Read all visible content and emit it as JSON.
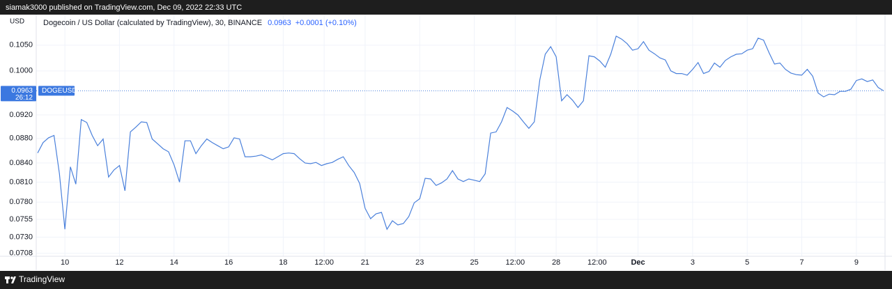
{
  "header": {
    "published": "siamak3000 published on TradingView.com, Dec 09, 2022 22:33 UTC"
  },
  "footer": {
    "brand": "TradingView"
  },
  "chart_data": {
    "type": "line",
    "title": "Dogecoin / US Dollar (calculated by TradingView), 30, BINANCE",
    "last_value": 0.0963,
    "change": "+0.0001 (+0.10%)",
    "countdown": "26:12",
    "symbol": "DOGEUSD",
    "y_unit": "USD",
    "color": "#4a80db",
    "log_scale": true,
    "grid": true,
    "x": [
      9.0,
      9.2,
      9.4,
      9.6,
      9.8,
      10.0,
      10.2,
      10.4,
      10.6,
      10.8,
      11.0,
      11.2,
      11.4,
      11.6,
      11.8,
      12.0,
      12.2,
      12.4,
      12.6,
      12.8,
      13.0,
      13.2,
      13.4,
      13.6,
      13.8,
      14.0,
      14.2,
      14.4,
      14.6,
      14.8,
      15.0,
      15.2,
      15.4,
      15.6,
      15.8,
      16.0,
      16.2,
      16.4,
      16.6,
      16.8,
      17.0,
      17.2,
      17.4,
      17.6,
      17.8,
      18.0,
      18.2,
      18.4,
      18.6,
      18.8,
      19.0,
      19.2,
      19.4,
      19.6,
      19.8,
      20.0,
      20.2,
      20.4,
      20.6,
      20.8,
      21.0,
      21.2,
      21.4,
      21.6,
      21.8,
      22.0,
      22.2,
      22.4,
      22.6,
      22.8,
      23.0,
      23.2,
      23.4,
      23.6,
      23.8,
      24.0,
      24.2,
      24.4,
      24.6,
      24.8,
      25.0,
      25.2,
      25.4,
      25.6,
      25.8,
      26.0,
      26.2,
      26.4,
      26.6,
      26.8,
      27.0,
      27.2,
      27.4,
      27.6,
      27.8,
      28.0,
      28.2,
      28.4,
      28.6,
      28.8,
      29.0,
      29.2,
      29.4,
      29.6,
      29.8,
      30.0,
      30.2,
      30.4,
      30.6,
      30.8,
      31.0,
      31.2,
      31.4,
      31.6,
      31.8,
      32.0,
      32.2,
      32.4,
      32.6,
      32.8,
      33.0,
      33.2,
      33.4,
      33.6,
      33.8,
      34.0,
      34.2,
      34.4,
      34.6,
      34.8,
      35.0,
      35.2,
      35.4,
      35.6,
      35.8,
      36.0,
      36.2,
      36.4,
      36.6,
      36.8,
      37.0,
      37.2,
      37.4,
      37.6,
      37.8,
      38.0,
      38.2,
      38.4,
      38.6,
      38.8,
      39.0,
      39.2,
      39.4,
      39.6,
      39.8,
      40.0
    ],
    "values": [
      0.0856,
      0.0873,
      0.0881,
      0.0885,
      0.0823,
      0.0741,
      0.0834,
      0.0807,
      0.0912,
      0.0907,
      0.0885,
      0.0868,
      0.0879,
      0.0818,
      0.0829,
      0.0836,
      0.0797,
      0.0891,
      0.0899,
      0.0908,
      0.0907,
      0.0879,
      0.0871,
      0.0863,
      0.0858,
      0.0837,
      0.081,
      0.0876,
      0.0876,
      0.0855,
      0.0868,
      0.0879,
      0.0873,
      0.0868,
      0.0863,
      0.0866,
      0.0881,
      0.0879,
      0.085,
      0.085,
      0.0851,
      0.0853,
      0.0849,
      0.0845,
      0.085,
      0.0855,
      0.0856,
      0.0855,
      0.0847,
      0.084,
      0.0839,
      0.0841,
      0.0836,
      0.0839,
      0.0841,
      0.0846,
      0.085,
      0.0836,
      0.0825,
      0.0808,
      0.0771,
      0.0756,
      0.0763,
      0.0765,
      0.0741,
      0.0753,
      0.0747,
      0.0749,
      0.0759,
      0.0779,
      0.0785,
      0.0816,
      0.0815,
      0.0805,
      0.0809,
      0.0815,
      0.0828,
      0.0815,
      0.0811,
      0.0815,
      0.0813,
      0.0811,
      0.0823,
      0.0889,
      0.0891,
      0.0908,
      0.0933,
      0.0927,
      0.092,
      0.0908,
      0.0897,
      0.0908,
      0.0983,
      0.1032,
      0.1047,
      0.1027,
      0.0945,
      0.0956,
      0.0946,
      0.0933,
      0.0945,
      0.1029,
      0.1027,
      0.1019,
      0.1007,
      0.1032,
      0.1068,
      0.1062,
      0.1053,
      0.104,
      0.1043,
      0.1057,
      0.104,
      0.1033,
      0.1025,
      0.1021,
      0.1,
      0.0995,
      0.0995,
      0.0992,
      0.1003,
      0.1016,
      0.0995,
      0.0999,
      0.1015,
      0.1007,
      0.102,
      0.1027,
      0.1032,
      0.1033,
      0.104,
      0.1043,
      0.1064,
      0.106,
      0.1035,
      0.1013,
      0.1015,
      0.1003,
      0.0996,
      0.0993,
      0.0992,
      0.1003,
      0.099,
      0.0959,
      0.0952,
      0.0957,
      0.0956,
      0.0962,
      0.0962,
      0.0966,
      0.0982,
      0.0985,
      0.098,
      0.0983,
      0.0969,
      0.0963
    ],
    "xlim": [
      8.95,
      40.05
    ],
    "xticks": [
      10,
      12,
      14,
      16,
      18,
      {
        "value": 19.5,
        "label": "12:00"
      },
      21,
      23,
      25,
      {
        "value": 26.5,
        "label": "12:00"
      },
      28,
      {
        "value": 29.5,
        "label": "12:00"
      },
      {
        "value": 31,
        "label": "Dec"
      },
      {
        "value": 33,
        "label": "3"
      },
      {
        "value": 35,
        "label": "5"
      },
      {
        "value": 37,
        "label": "7"
      },
      {
        "value": 39,
        "label": "9"
      }
    ],
    "ylim": [
      0.0704,
      0.1111
    ],
    "yticks": [
      {
        "value": 0.105,
        "label": "0.1050"
      },
      {
        "value": 0.1,
        "label": "0.1000"
      },
      {
        "value": 0.092,
        "label": "0.0920"
      },
      {
        "value": 0.088,
        "label": "0.0880"
      },
      {
        "value": 0.084,
        "label": "0.0840"
      },
      {
        "value": 0.081,
        "label": "0.0810"
      },
      {
        "value": 0.078,
        "label": "0.0780"
      },
      0.0755,
      {
        "value": 0.073,
        "label": "0.0730"
      },
      0.0708
    ]
  }
}
